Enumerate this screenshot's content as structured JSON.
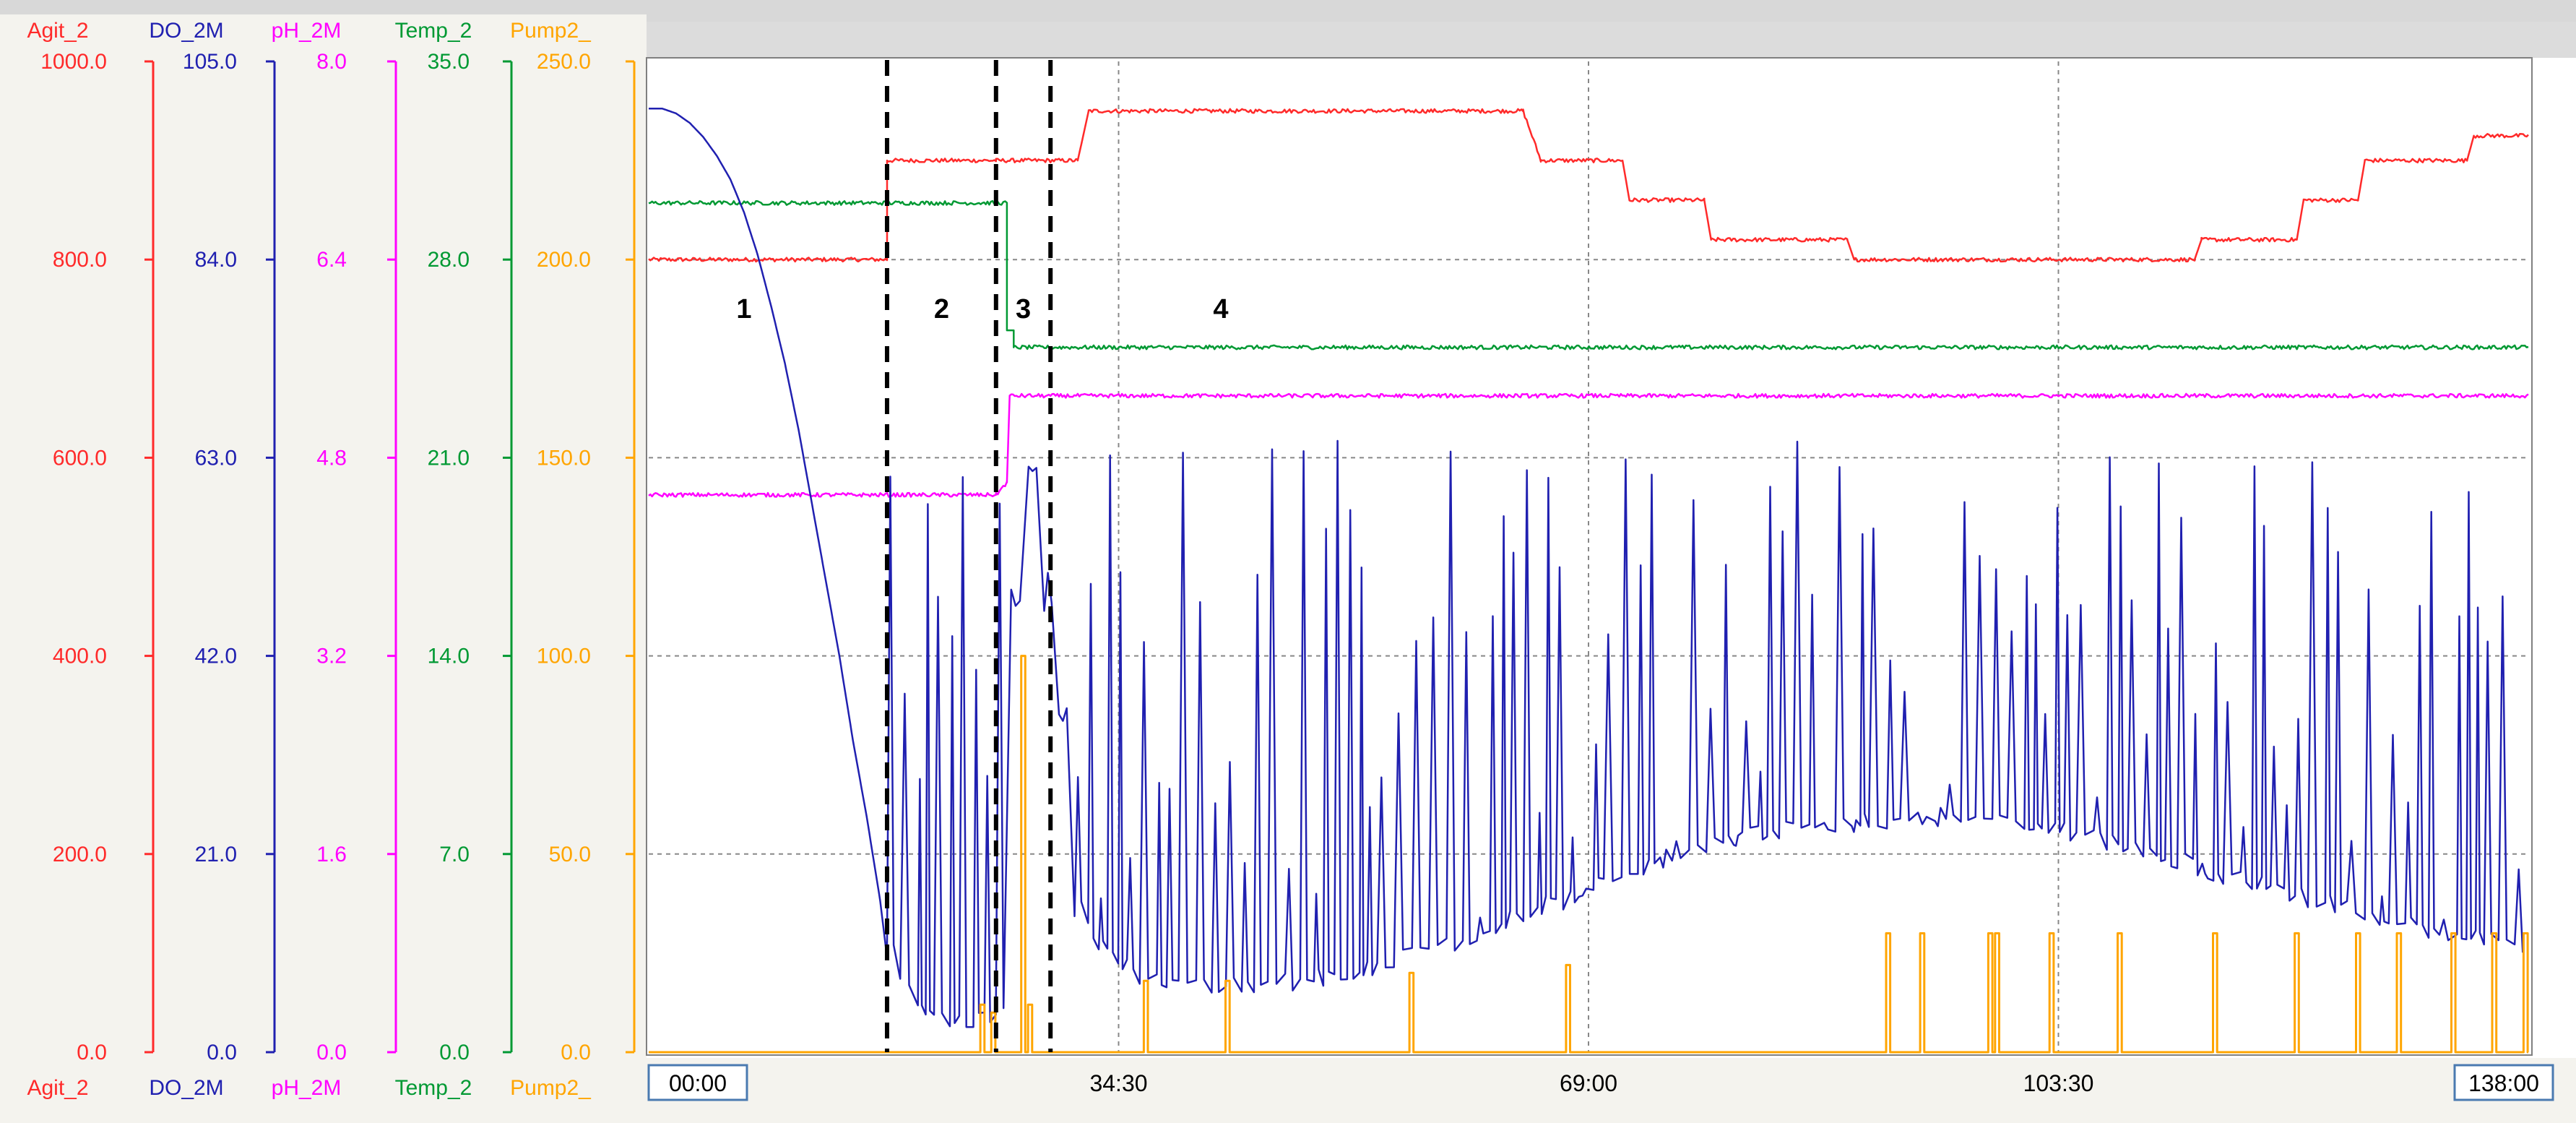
{
  "chart_data": {
    "type": "line",
    "time_axis": {
      "tick_labels": [
        "00:00",
        "34:30",
        "69:00",
        "103:30",
        "138:00"
      ],
      "range": [
        0,
        138
      ],
      "grid": true
    },
    "axes": [
      {
        "title": "Agit_2",
        "color": "#ff2a2a",
        "ticks": [
          "1000.0",
          "800.0",
          "600.0",
          "400.0",
          "200.0",
          "0.0"
        ],
        "range": [
          0,
          1000
        ]
      },
      {
        "title": "DO_2M",
        "color": "#2020b0",
        "ticks": [
          "105.0",
          "84.0",
          "63.0",
          "42.0",
          "21.0",
          "0.0"
        ],
        "range": [
          0,
          105
        ]
      },
      {
        "title": "pH_2M",
        "color": "#ff00ff",
        "ticks": [
          "8.0",
          "6.4",
          "4.8",
          "3.2",
          "1.6",
          "0.0"
        ],
        "range": [
          0,
          8
        ]
      },
      {
        "title": "Temp_2",
        "color": "#009933",
        "ticks": [
          "35.0",
          "28.0",
          "21.0",
          "14.0",
          "7.0",
          "0.0"
        ],
        "range": [
          0,
          35
        ]
      },
      {
        "title": "Pump2_",
        "color": "#ffa500",
        "ticks": [
          "250.0",
          "200.0",
          "150.0",
          "100.0",
          "50.0",
          "0.0"
        ],
        "range": [
          0,
          250
        ]
      }
    ],
    "phase_markers": {
      "labels": [
        "1",
        "2",
        "3",
        "4"
      ],
      "boundaries": [
        17.5,
        25.5,
        29.5
      ],
      "label_positions": [
        7,
        21.5,
        27.5,
        42
      ]
    },
    "series": [
      {
        "axis": 0,
        "color": "#ff2a2a",
        "steps": [
          [
            0,
            800
          ],
          [
            17.5,
            800
          ],
          [
            17.5,
            900
          ],
          [
            25.5,
            900
          ],
          [
            31.5,
            900
          ],
          [
            32.3,
            950
          ],
          [
            64.2,
            950
          ],
          [
            65.5,
            900
          ],
          [
            71.5,
            900
          ],
          [
            72,
            860
          ],
          [
            77.5,
            860
          ],
          [
            78,
            820
          ],
          [
            88,
            820
          ],
          [
            88.5,
            800
          ],
          [
            113.5,
            800
          ],
          [
            114,
            820
          ],
          [
            121,
            820
          ],
          [
            121.5,
            860
          ],
          [
            125.5,
            860
          ],
          [
            126,
            900
          ],
          [
            133.5,
            900
          ],
          [
            134,
            925
          ],
          [
            138,
            925
          ]
        ]
      },
      {
        "axis": 3,
        "color": "#009933",
        "steps": [
          [
            0,
            30.0
          ],
          [
            17.5,
            30.0
          ],
          [
            25.5,
            30.0
          ],
          [
            26.3,
            30.0
          ],
          [
            26.3,
            25.5
          ],
          [
            26.8,
            25.5
          ],
          [
            26.8,
            24.9
          ],
          [
            138,
            24.9
          ]
        ]
      },
      {
        "axis": 2,
        "color": "#ff00ff",
        "steps": [
          [
            0,
            4.5
          ],
          [
            25.5,
            4.5
          ],
          [
            26.3,
            4.6
          ],
          [
            26.5,
            5.3
          ],
          [
            138,
            5.3
          ]
        ]
      },
      {
        "axis": 1,
        "color": "#2020b0",
        "baseline": [
          [
            0,
            100
          ],
          [
            1,
            100
          ],
          [
            2,
            99.5
          ],
          [
            3,
            98.5
          ],
          [
            4,
            97
          ],
          [
            5,
            95
          ],
          [
            6,
            92.5
          ],
          [
            7,
            89
          ],
          [
            8,
            84.5
          ],
          [
            9,
            79
          ],
          [
            10,
            73
          ],
          [
            11,
            66
          ],
          [
            12,
            58
          ],
          [
            13,
            50
          ],
          [
            14,
            42
          ],
          [
            15,
            33
          ],
          [
            16,
            25
          ],
          [
            17,
            16
          ],
          [
            17.5,
            10
          ],
          [
            19,
            4
          ],
          [
            22,
            2.5
          ],
          [
            25,
            2.5
          ],
          [
            26,
            3
          ],
          [
            27,
            75
          ],
          [
            28,
            60
          ],
          [
            29,
            47
          ],
          [
            30,
            38
          ],
          [
            31,
            15
          ],
          [
            33,
            10
          ],
          [
            36,
            7
          ],
          [
            40,
            6
          ],
          [
            45,
            6
          ],
          [
            50,
            7
          ],
          [
            55,
            9
          ],
          [
            60,
            11
          ],
          [
            65,
            14
          ],
          [
            70,
            17
          ],
          [
            75,
            20
          ],
          [
            80,
            22
          ],
          [
            85,
            23
          ],
          [
            90,
            23.5
          ],
          [
            95,
            24
          ],
          [
            100,
            23.5
          ],
          [
            105,
            22
          ],
          [
            110,
            20
          ],
          [
            115,
            18
          ],
          [
            120,
            16
          ],
          [
            125,
            14
          ],
          [
            130,
            12
          ],
          [
            135,
            11
          ],
          [
            138,
            10
          ]
        ],
        "spike_peak_range": [
          14,
          65
        ],
        "spike_spacing": 0.95
      },
      {
        "axis": 4,
        "color": "#ffa500",
        "baseline_value": 0,
        "pulses": [
          [
            24.5,
            12
          ],
          [
            25.3,
            10
          ],
          [
            27.5,
            100
          ],
          [
            28.0,
            12
          ],
          [
            36.5,
            18
          ],
          [
            42.5,
            18
          ],
          [
            56,
            20
          ],
          [
            67.5,
            22
          ],
          [
            91,
            30
          ],
          [
            93.5,
            30
          ],
          [
            98.5,
            30
          ],
          [
            99,
            30
          ],
          [
            103,
            30
          ],
          [
            108,
            30
          ],
          [
            115,
            30
          ],
          [
            121,
            30
          ],
          [
            125.5,
            30
          ],
          [
            128.5,
            30
          ],
          [
            132.5,
            30
          ],
          [
            135.5,
            30
          ],
          [
            137.8,
            30
          ]
        ]
      }
    ]
  }
}
